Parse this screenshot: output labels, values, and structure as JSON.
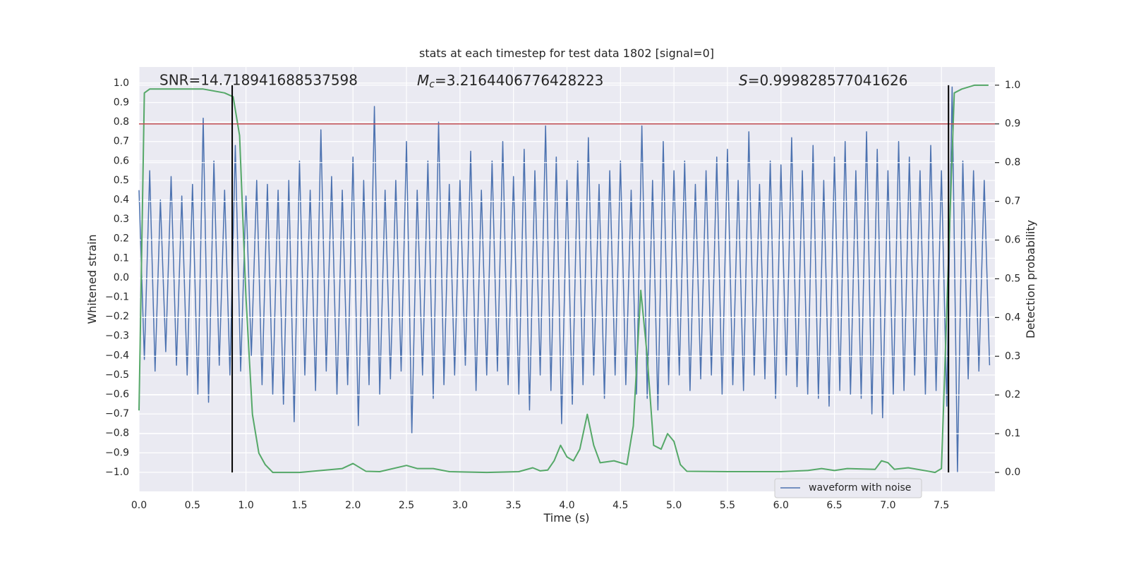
{
  "chart_data": {
    "type": "line",
    "title": "stats at each timestep for test data 1802 [signal=0]",
    "xlabel": "Time (s)",
    "ylabel": "Whitened strain",
    "y2label": "Detection probability",
    "background": "#eaeaf2",
    "grid": true,
    "legend": "lower right",
    "xlim": [
      0,
      8.0
    ],
    "ylim": [
      -1.098,
      1.083
    ],
    "y2lim": [
      -0.049,
      1.047
    ],
    "xticks": [
      {
        "value": 0,
        "label": "0.0"
      },
      {
        "value": 0.5,
        "label": "0.5"
      },
      {
        "value": 1,
        "label": "1.0"
      },
      {
        "value": 1.5,
        "label": "1.5"
      },
      {
        "value": 2,
        "label": "2.0"
      },
      {
        "value": 2.5,
        "label": "2.5"
      },
      {
        "value": 3,
        "label": "3.0"
      },
      {
        "value": 3.5,
        "label": "3.5"
      },
      {
        "value": 4,
        "label": "4.0"
      },
      {
        "value": 4.5,
        "label": "4.5"
      },
      {
        "value": 5,
        "label": "5.0"
      },
      {
        "value": 5.5,
        "label": "5.5"
      },
      {
        "value": 6,
        "label": "6.0"
      },
      {
        "value": 6.5,
        "label": "6.5"
      },
      {
        "value": 7,
        "label": "7.0"
      },
      {
        "value": 7.5,
        "label": "7.5"
      }
    ],
    "yticks": [
      {
        "value": 1,
        "label": "1.0"
      },
      {
        "value": 0.9,
        "label": "0.9"
      },
      {
        "value": 0.8,
        "label": "0.8"
      },
      {
        "value": 0.7,
        "label": "0.7"
      },
      {
        "value": 0.6,
        "label": "0.6"
      },
      {
        "value": 0.5,
        "label": "0.5"
      },
      {
        "value": 0.4,
        "label": "0.4"
      },
      {
        "value": 0.3,
        "label": "0.3"
      },
      {
        "value": 0.2,
        "label": "0.2"
      },
      {
        "value": 0.1,
        "label": "0.1"
      },
      {
        "value": 0,
        "label": "0.0"
      },
      {
        "value": -0.1,
        "label": "−0.1"
      },
      {
        "value": -0.2,
        "label": "−0.2"
      },
      {
        "value": -0.3,
        "label": "−0.3"
      },
      {
        "value": -0.4,
        "label": "−0.4"
      },
      {
        "value": -0.5,
        "label": "−0.5"
      },
      {
        "value": -0.6,
        "label": "−0.6"
      },
      {
        "value": -0.7,
        "label": "−0.7"
      },
      {
        "value": -0.8,
        "label": "−0.8"
      },
      {
        "value": -0.9,
        "label": "−0.9"
      },
      {
        "value": -1,
        "label": "−1.0"
      }
    ],
    "y2ticks": [
      {
        "value": 1,
        "label": "1.0"
      },
      {
        "value": 0.9,
        "label": "0.9"
      },
      {
        "value": 0.8,
        "label": "0.8"
      },
      {
        "value": 0.7,
        "label": "0.7"
      },
      {
        "value": 0.6,
        "label": "0.6"
      },
      {
        "value": 0.5,
        "label": "0.5"
      },
      {
        "value": 0.4,
        "label": "0.4"
      },
      {
        "value": 0.3,
        "label": "0.3"
      },
      {
        "value": 0.2,
        "label": "0.2"
      },
      {
        "value": 0.1,
        "label": "0.1"
      },
      {
        "value": 0,
        "label": "0.0"
      }
    ],
    "annotations": [
      {
        "text": "SNR=14.718941688537598"
      },
      {
        "symbol": "M",
        "subscript": "c",
        "text": "=3.2164406776428223"
      },
      {
        "symbol": "S",
        "text": "=0.999828577041626"
      }
    ],
    "hlines": [
      {
        "y": 0.9,
        "axis": "y2",
        "color": "#c44e52"
      }
    ],
    "vlines": {
      "x": [
        0.871,
        7.566
      ],
      "ymin": 0,
      "ymax": 1,
      "axis": "y2",
      "color": "#000000"
    },
    "series": [
      {
        "name": "waveform with noise",
        "color": "#4c72b0",
        "x": [
          0,
          0.05,
          0.1,
          0.15,
          0.2,
          0.25,
          0.3,
          0.35,
          0.4,
          0.45,
          0.5,
          0.55,
          0.6,
          0.65,
          0.7,
          0.75,
          0.8,
          0.85,
          0.9,
          0.95,
          1,
          1.05,
          1.1,
          1.15,
          1.2,
          1.25,
          1.3,
          1.35,
          1.4,
          1.45,
          1.5,
          1.55,
          1.6,
          1.65,
          1.7,
          1.75,
          1.8,
          1.85,
          1.9,
          1.95,
          2,
          2.05,
          2.1,
          2.15,
          2.2,
          2.25,
          2.3,
          2.35,
          2.4,
          2.45,
          2.5,
          2.55,
          2.6,
          2.65,
          2.7,
          2.75,
          2.8,
          2.85,
          2.9,
          2.95,
          3,
          3.05,
          3.1,
          3.15,
          3.2,
          3.25,
          3.3,
          3.35,
          3.4,
          3.45,
          3.5,
          3.55,
          3.6,
          3.65,
          3.7,
          3.75,
          3.8,
          3.85,
          3.9,
          3.95,
          4,
          4.05,
          4.1,
          4.15,
          4.2,
          4.25,
          4.3,
          4.35,
          4.4,
          4.45,
          4.5,
          4.55,
          4.6,
          4.65,
          4.7,
          4.75,
          4.8,
          4.85,
          4.9,
          4.95,
          5,
          5.05,
          5.1,
          5.15,
          5.2,
          5.25,
          5.3,
          5.35,
          5.4,
          5.45,
          5.5,
          5.55,
          5.6,
          5.65,
          5.7,
          5.75,
          5.8,
          5.85,
          5.9,
          5.95,
          6,
          6.05,
          6.1,
          6.15,
          6.2,
          6.25,
          6.3,
          6.35,
          6.4,
          6.45,
          6.5,
          6.55,
          6.6,
          6.65,
          6.7,
          6.75,
          6.8,
          6.85,
          6.9,
          6.95,
          7,
          7.05,
          7.1,
          7.15,
          7.2,
          7.25,
          7.3,
          7.35,
          7.4,
          7.45,
          7.5,
          7.55,
          7.6,
          7.65,
          7.7,
          7.75,
          7.8,
          7.85,
          7.9,
          7.95
        ],
        "values": [
          0.45,
          -0.42,
          0.55,
          -0.48,
          0.4,
          -0.38,
          0.52,
          -0.45,
          0.42,
          -0.5,
          0.48,
          -0.6,
          0.82,
          -0.64,
          0.6,
          -0.45,
          0.45,
          -0.5,
          0.68,
          -0.48,
          0.42,
          -0.4,
          0.5,
          -0.55,
          0.48,
          -0.6,
          0.45,
          -0.65,
          0.5,
          -0.74,
          0.6,
          -0.5,
          0.45,
          -0.58,
          0.76,
          -0.48,
          0.52,
          -0.6,
          0.45,
          -0.55,
          0.62,
          -0.76,
          0.5,
          -0.55,
          0.88,
          -0.6,
          0.45,
          -0.52,
          0.5,
          -0.48,
          0.7,
          -0.8,
          0.45,
          -0.5,
          0.6,
          -0.62,
          0.8,
          -0.55,
          0.48,
          -0.5,
          0.5,
          -0.45,
          0.65,
          -0.58,
          0.45,
          -0.5,
          0.6,
          -0.48,
          0.7,
          -0.55,
          0.52,
          -0.6,
          0.66,
          -0.68,
          0.55,
          -0.5,
          0.78,
          -0.58,
          0.62,
          -0.75,
          0.5,
          -0.65,
          0.6,
          -0.55,
          0.72,
          -0.5,
          0.48,
          -0.62,
          0.55,
          -0.5,
          0.6,
          -0.55,
          0.45,
          -0.6,
          0.78,
          -0.62,
          0.5,
          -0.68,
          0.7,
          -0.55,
          0.55,
          -0.5,
          0.6,
          -0.58,
          0.48,
          -0.52,
          0.55,
          -0.5,
          0.62,
          -0.6,
          0.66,
          -0.55,
          0.5,
          -0.58,
          0.75,
          -0.5,
          0.48,
          -0.52,
          0.6,
          -0.62,
          0.58,
          -0.5,
          0.72,
          -0.56,
          0.55,
          -0.6,
          0.68,
          -0.62,
          0.5,
          -0.66,
          0.62,
          -0.58,
          0.7,
          -0.6,
          0.55,
          -0.62,
          0.75,
          -0.7,
          0.66,
          -0.72,
          0.55,
          -0.6,
          0.7,
          -0.58,
          0.62,
          -0.5,
          0.55,
          -0.6,
          0.68,
          -0.58,
          0.55,
          -0.66,
          0.98,
          -1.0,
          0.6,
          -0.52,
          0.55,
          -0.48,
          0.5,
          -0.45
        ]
      },
      {
        "color": "#55a868",
        "axis": "y2",
        "x": [
          0,
          0.05,
          0.1,
          0.3,
          0.6,
          0.8,
          0.88,
          0.94,
          1.0,
          1.06,
          1.12,
          1.18,
          1.25,
          1.5,
          1.7,
          1.9,
          2.0,
          2.12,
          2.25,
          2.5,
          2.6,
          2.75,
          2.9,
          3.25,
          3.55,
          3.68,
          3.75,
          3.82,
          3.88,
          3.94,
          4.0,
          4.06,
          4.12,
          4.19,
          4.25,
          4.31,
          4.44,
          4.56,
          4.62,
          4.69,
          4.75,
          4.81,
          4.88,
          4.94,
          5.0,
          5.06,
          5.12,
          5.5,
          6.0,
          6.25,
          6.38,
          6.5,
          6.62,
          6.88,
          6.94,
          7.0,
          7.06,
          7.19,
          7.38,
          7.44,
          7.5,
          7.56,
          7.62,
          7.69,
          7.81,
          7.94
        ],
        "values": [
          0.16,
          0.98,
          0.99,
          0.99,
          0.99,
          0.98,
          0.97,
          0.87,
          0.45,
          0.15,
          0.05,
          0.02,
          0.0,
          0.0,
          0.005,
          0.01,
          0.023,
          0.003,
          0.002,
          0.018,
          0.01,
          0.01,
          0.002,
          0.0,
          0.002,
          0.012,
          0.004,
          0.006,
          0.03,
          0.07,
          0.04,
          0.03,
          0.06,
          0.15,
          0.07,
          0.025,
          0.03,
          0.02,
          0.12,
          0.47,
          0.3,
          0.07,
          0.06,
          0.1,
          0.08,
          0.02,
          0.003,
          0.002,
          0.002,
          0.005,
          0.01,
          0.005,
          0.01,
          0.008,
          0.03,
          0.025,
          0.008,
          0.012,
          0.003,
          0.0,
          0.01,
          0.5,
          0.98,
          0.99,
          1.0,
          1.0
        ]
      }
    ]
  }
}
